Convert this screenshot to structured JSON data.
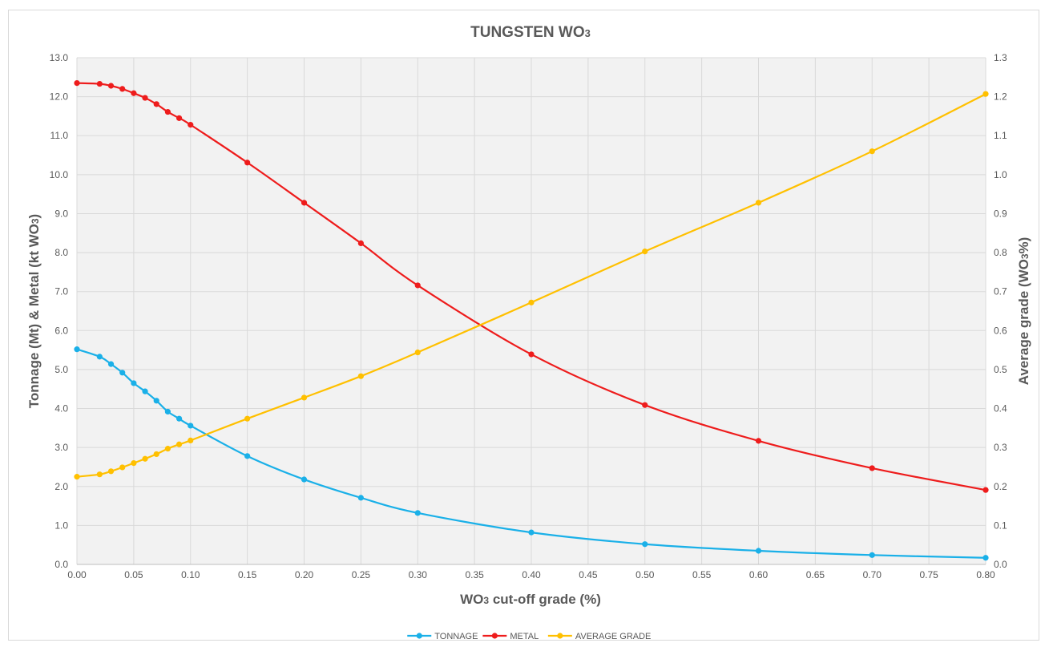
{
  "chart_data": {
    "type": "line",
    "title": "TUNGSTEN WO",
    "title_sub": "3",
    "xlabel_pre": "WO",
    "xlabel_sub": "3",
    "xlabel_post": " cut-off grade (%)",
    "ylabel_left_pre": "Tonnage (Mt) & Metal (kt WO",
    "ylabel_left_sub": "3",
    "ylabel_left_post": ")",
    "ylabel_right_pre": "Average grade (WO",
    "ylabel_right_sub": "3",
    "ylabel_right_post": "%)",
    "xlim": [
      0,
      0.8
    ],
    "ylim_left": [
      0,
      13
    ],
    "ylim_right": [
      0,
      1.3
    ],
    "x_ticks": [
      "0.00",
      "0.05",
      "0.10",
      "0.15",
      "0.20",
      "0.25",
      "0.30",
      "0.35",
      "0.40",
      "0.45",
      "0.50",
      "0.55",
      "0.60",
      "0.65",
      "0.70",
      "0.75",
      "0.80"
    ],
    "y_left_ticks": [
      "0.0",
      "1.0",
      "2.0",
      "3.0",
      "4.0",
      "5.0",
      "6.0",
      "7.0",
      "8.0",
      "9.0",
      "10.0",
      "11.0",
      "12.0",
      "13.0"
    ],
    "y_right_ticks": [
      "0.0",
      "0.1",
      "0.2",
      "0.3",
      "0.4",
      "0.5",
      "0.6",
      "0.7",
      "0.8",
      "0.9",
      "1.0",
      "1.1",
      "1.2",
      "1.3"
    ],
    "grid": true,
    "legend_position": "bottom",
    "x": [
      0.0,
      0.02,
      0.03,
      0.04,
      0.05,
      0.06,
      0.07,
      0.08,
      0.09,
      0.1,
      0.15,
      0.2,
      0.25,
      0.3,
      0.4,
      0.5,
      0.6,
      0.7,
      0.8
    ],
    "series": [
      {
        "name": "TONNAGE",
        "axis": "left",
        "color": "#1ab0e8",
        "values": [
          5.52,
          5.33,
          5.14,
          4.92,
          4.65,
          4.44,
          4.2,
          3.92,
          3.74,
          3.56,
          2.78,
          2.18,
          1.71,
          1.32,
          0.82,
          0.52,
          0.35,
          0.24,
          0.17
        ]
      },
      {
        "name": "METAL",
        "axis": "left",
        "color": "#ee1c1c",
        "values": [
          12.35,
          12.33,
          12.28,
          12.2,
          12.09,
          11.97,
          11.81,
          11.61,
          11.45,
          11.28,
          10.31,
          9.28,
          8.24,
          7.16,
          5.39,
          4.09,
          3.17,
          2.47,
          1.91
        ]
      },
      {
        "name": "AVERAGE GRADE",
        "axis": "right",
        "color": "#ffc000",
        "values": [
          0.225,
          0.231,
          0.239,
          0.249,
          0.26,
          0.271,
          0.283,
          0.297,
          0.308,
          0.318,
          0.374,
          0.428,
          0.483,
          0.544,
          0.672,
          0.803,
          0.928,
          1.06,
          1.207
        ]
      }
    ]
  }
}
